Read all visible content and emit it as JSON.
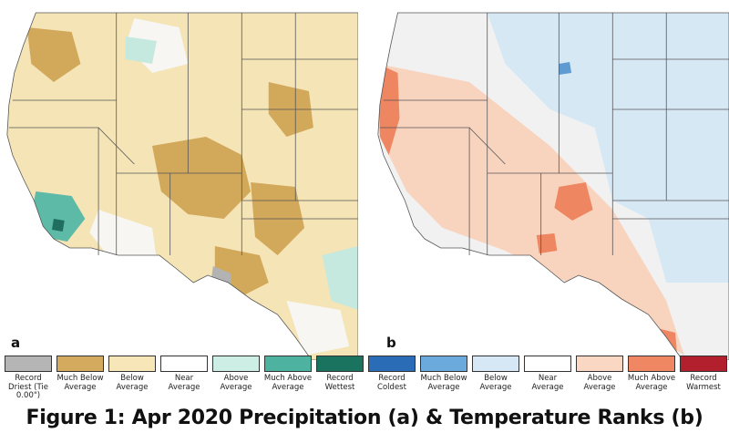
{
  "panels": [
    {
      "letter": "a",
      "variable": "Precipitation",
      "base_color": "#f4e4b6",
      "regions": [
        {
          "category": "much-below",
          "color": "#d2a85a"
        },
        {
          "category": "near",
          "color": "#f7f6f2"
        },
        {
          "category": "above",
          "color": "#c5e9df"
        },
        {
          "category": "much-above",
          "color": "#5dbaa6"
        },
        {
          "category": "record-driest",
          "color": "#b3b3b3"
        },
        {
          "category": "record-wettest",
          "color": "#1f6e60"
        }
      ]
    },
    {
      "letter": "b",
      "variable": "Temperature",
      "base_color": "#f1f1f1",
      "regions": [
        {
          "category": "below",
          "color": "#d7e8f5"
        },
        {
          "category": "above",
          "color": "#f8d4bf"
        },
        {
          "category": "much-above",
          "color": "#ee8661"
        },
        {
          "category": "much-below",
          "color": "#5e9bd3"
        }
      ]
    }
  ],
  "legend": [
    {
      "label": "Record Driest (Tie 0.00\")",
      "color": "#b5b5b5"
    },
    {
      "label": "Much Below Average",
      "color": "#d4aa5e"
    },
    {
      "label": "Below Average",
      "color": "#f6e6b8"
    },
    {
      "label": "Near Average",
      "color": "#ffffff"
    },
    {
      "label": "Above Average",
      "color": "#cdeee5"
    },
    {
      "label": "Much Above Average",
      "color": "#4db3a0"
    },
    {
      "label": "Record Wettest",
      "color": "#19735f"
    },
    {
      "label": "Record Coldest",
      "color": "#2a6db6"
    },
    {
      "label": "Much Below Average",
      "color": "#6aaadd"
    },
    {
      "label": "Below Average",
      "color": "#d6e8f5"
    },
    {
      "label": "Near Average",
      "color": "#ffffff"
    },
    {
      "label": "Above Average",
      "color": "#fad7c3"
    },
    {
      "label": "Much Above Average",
      "color": "#ee8762"
    },
    {
      "label": "Record Warmest",
      "color": "#b21f2d"
    }
  ],
  "caption": "Figure 1: Apr 2020 Precipitation (a) & Temperature Ranks (b)"
}
